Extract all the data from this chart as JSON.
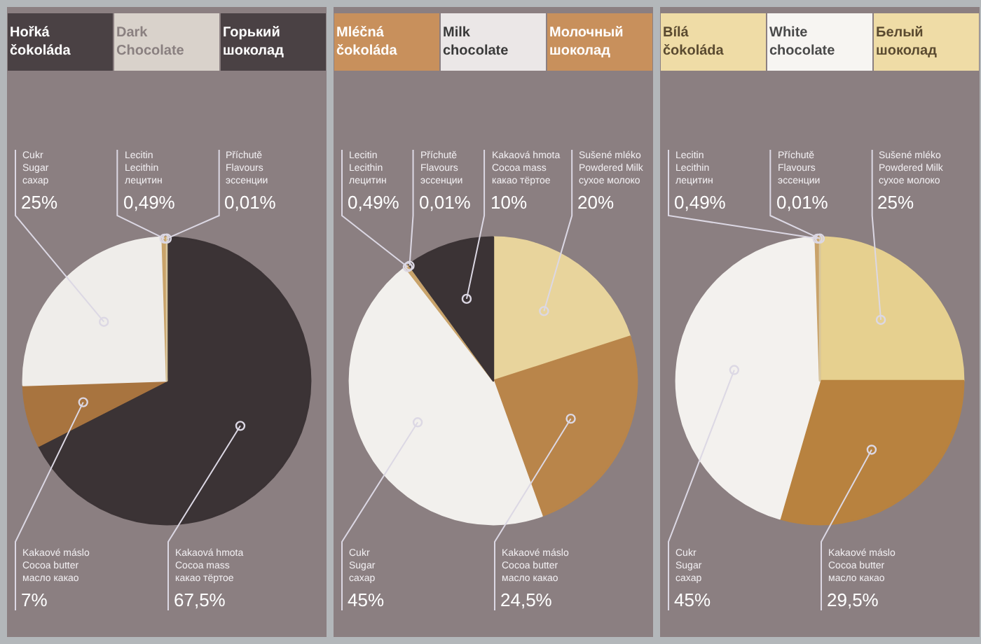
{
  "chart_data": [
    {
      "type": "pie",
      "title": "Hořká čokoláda",
      "subtitle": "Dark Chocolate",
      "annotations": [
        "Горький шоколад"
      ],
      "categories": [
        "Kakaová hmota\nCocoa mass\nкакао тёртое",
        "Kakaové máslo\nCocoa butter\nмасло какао",
        "Cukr\nSugar\nсахар",
        "Lecitin\nLecithin\nлецитин",
        "Příchutě\nFlavours\nэссенции"
      ],
      "values": [
        67.5,
        7,
        25,
        0.49,
        0.01
      ],
      "value_labels": [
        "67,5%",
        "7%",
        "25%",
        "0,49%",
        "0,01%"
      ],
      "colors": [
        "#3b3335",
        "#a8743f",
        "#efedea",
        "#c9a36a",
        "#d8c7a0"
      ]
    },
    {
      "type": "pie",
      "title": "Mléčná čokoláda",
      "subtitle": "Milk chocolate",
      "annotations": [
        "Молочный шоколад"
      ],
      "categories": [
        "Sušené mléko\nPowdered Milk\nсухое молоко",
        "Kakaové máslo\nCocoa butter\nмасло какао",
        "Cukr\nSugar\nсахар",
        "Lecitin\nLecithin\nлецитин",
        "Příchutě\nFlavours\nэссенции",
        "Kakaová hmota\nCocoa mass\nкакао тёртое"
      ],
      "values": [
        20,
        24.5,
        45,
        0.49,
        0.01,
        10
      ],
      "value_labels": [
        "20%",
        "24,5%",
        "45%",
        "0,49%",
        "0,01%",
        "10%"
      ],
      "colors": [
        "#e8d49c",
        "#b9854a",
        "#f2f0ed",
        "#c9a36a",
        "#d8c7a0",
        "#3b3335"
      ]
    },
    {
      "type": "pie",
      "title": "Bílá čokoláda",
      "subtitle": "White chocolate",
      "annotations": [
        "Белый шоколад"
      ],
      "categories": [
        "Sušené mléko\nPowdered Milk\nсухое молоко",
        "Kakaové máslo\nCocoa butter\nмасло какао",
        "Cukr\nSugar\nсахар",
        "Lecitin\nLecithin\nлецитин",
        "Příchutě\nFlavours\nэссенции"
      ],
      "values": [
        25,
        29.5,
        45,
        0.49,
        0.01
      ],
      "value_labels": [
        "25%",
        "29,5%",
        "45%",
        "0,49%",
        "0,01%"
      ],
      "colors": [
        "#e6d08f",
        "#b8823f",
        "#f3f1ee",
        "#c9a36a",
        "#d8c7a0"
      ]
    }
  ]
}
